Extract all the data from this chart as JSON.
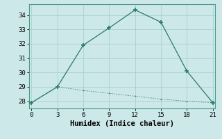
{
  "title": "",
  "xlabel": "Humidex (Indice chaleur)",
  "ylabel": "",
  "background_color": "#cde8e8",
  "line1_x": [
    0,
    3,
    6,
    9,
    12,
    15,
    18,
    21
  ],
  "line1_y": [
    27.9,
    29.0,
    31.9,
    33.1,
    34.35,
    33.5,
    30.1,
    27.9
  ],
  "line2_x": [
    0,
    3,
    6,
    9,
    12,
    15,
    18,
    21
  ],
  "line2_y": [
    27.9,
    29.0,
    28.75,
    28.55,
    28.35,
    28.15,
    28.0,
    27.9
  ],
  "line_color": "#2a7a6a",
  "xlim": [
    -0.3,
    21.3
  ],
  "ylim": [
    27.5,
    34.75
  ],
  "xticks": [
    0,
    3,
    6,
    9,
    12,
    15,
    18,
    21
  ],
  "yticks": [
    28,
    29,
    30,
    31,
    32,
    33,
    34
  ],
  "grid_color": "#aacfcf",
  "tick_fontsize": 6.5,
  "xlabel_fontsize": 7.5
}
